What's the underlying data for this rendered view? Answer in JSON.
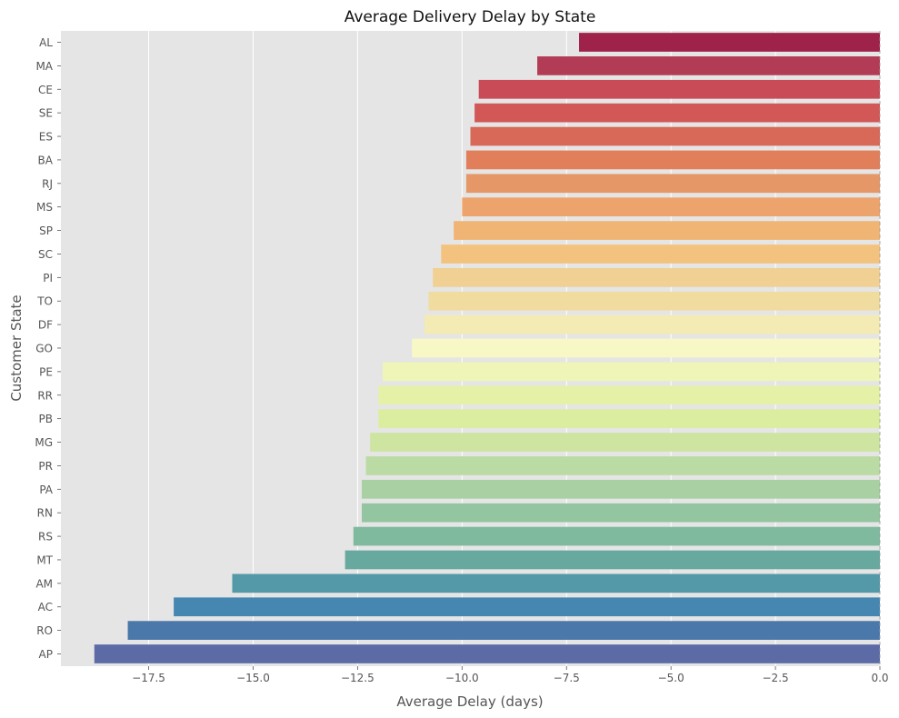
{
  "chart_data": {
    "type": "bar",
    "orientation": "horizontal",
    "title": "Average Delivery Delay by State",
    "xlabel": "Average Delay (days)",
    "ylabel": "Customer State",
    "xlim": [
      -19.6,
      0.0
    ],
    "xticks": [
      -17.5,
      -15.0,
      -12.5,
      -10.0,
      -7.5,
      -5.0,
      -2.5,
      0.0
    ],
    "xtick_labels": [
      "−17.5",
      "−15.0",
      "−12.5",
      "−10.0",
      "−7.5",
      "−5.0",
      "−2.5",
      "0.0"
    ],
    "grid": true,
    "categories": [
      "AL",
      "MA",
      "CE",
      "SE",
      "ES",
      "BA",
      "RJ",
      "MS",
      "SP",
      "SC",
      "PI",
      "TO",
      "DF",
      "GO",
      "PE",
      "RR",
      "PB",
      "MG",
      "PR",
      "PA",
      "RN",
      "RS",
      "MT",
      "AM",
      "AC",
      "RO",
      "AP"
    ],
    "values": [
      -7.2,
      -8.2,
      -9.6,
      -9.7,
      -9.8,
      -9.9,
      -9.9,
      -10.0,
      -10.2,
      -10.5,
      -10.7,
      -10.8,
      -10.9,
      -11.2,
      -11.9,
      -12.0,
      -12.0,
      -12.2,
      -12.3,
      -12.4,
      -12.4,
      -12.6,
      -12.8,
      -15.5,
      -16.9,
      -18.0,
      -18.8
    ],
    "colors": [
      "#9e224a",
      "#b23c55",
      "#c84b57",
      "#d25757",
      "#d86858",
      "#e27f5b",
      "#e59767",
      "#eca46c",
      "#f0b575",
      "#f3c27e",
      "#f1d093",
      "#f0dc9f",
      "#f3eab4",
      "#f7f8c5",
      "#eef5b6",
      "#e5f1a6",
      "#dbed9e",
      "#cde5a1",
      "#bbdba4",
      "#a8d0a3",
      "#94c5a1",
      "#7fba9f",
      "#68a99f",
      "#5399a8",
      "#4687b2",
      "#4b78ab",
      "#5c6ba6"
    ]
  }
}
